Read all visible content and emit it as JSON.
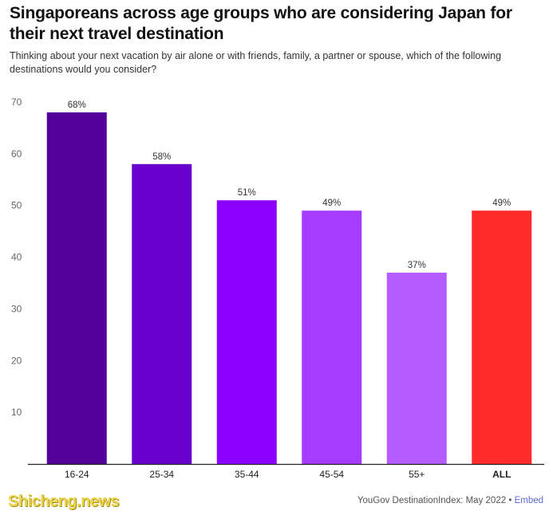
{
  "header": {
    "title": "Singaporeans across age groups who are considering Japan for their next travel destination",
    "subtitle": "Thinking about your next vacation by air alone or with friends, family, a partner or spouse, which of the following destinations would you consider?"
  },
  "footer": {
    "source": "YouGov DestinationIndex: May 2022",
    "separator": "•",
    "embed": "Embed",
    "watermark": "Shicheng.news"
  },
  "chart_data": {
    "type": "bar",
    "categories": [
      "16-24",
      "25-34",
      "35-44",
      "45-54",
      "55+",
      "ALL"
    ],
    "values": [
      68,
      58,
      51,
      49,
      37,
      49
    ],
    "data_labels": [
      "68%",
      "58%",
      "51%",
      "49%",
      "37%",
      "49%"
    ],
    "colors": [
      "#520099",
      "#6a00cc",
      "#8b00ff",
      "#a63cff",
      "#b45cff",
      "#ff2a2a"
    ],
    "bold_categories": [
      "ALL"
    ],
    "xlabel": "",
    "ylabel": "",
    "ylim": [
      0,
      70
    ],
    "yticks": [
      10,
      20,
      30,
      40,
      50,
      60,
      70
    ],
    "grid": false,
    "legend": "none"
  }
}
